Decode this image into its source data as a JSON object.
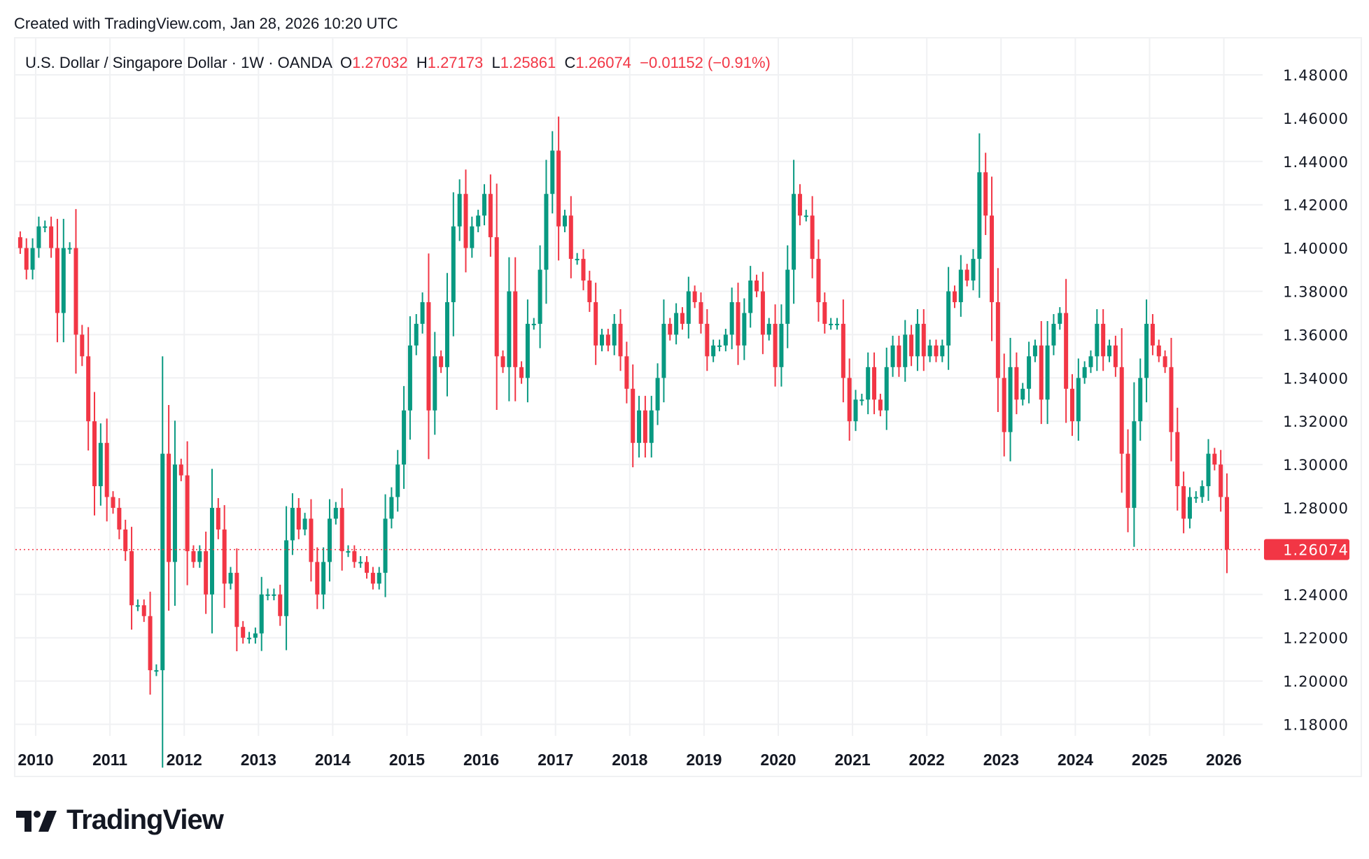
{
  "header": {
    "created": "Created with TradingView.com, Jan 28, 2026 10:20 UTC"
  },
  "legend": {
    "symbol": "U.S. Dollar / Singapore Dollar · 1W · OANDA",
    "o_label": "O",
    "o": "1.27032",
    "h_label": "H",
    "h": "1.27173",
    "l_label": "L",
    "l": "1.25861",
    "c_label": "C",
    "c": "1.26074",
    "change": "−0.01152 (−0.91%)"
  },
  "logo": {
    "text": "TradingView"
  },
  "colors": {
    "up": "#089981",
    "down": "#F23645",
    "grid": "#f0f1f3",
    "last_price": "#F23645"
  },
  "chart_data": {
    "type": "candlestick",
    "interval": "1W (shown here as approximate monthly closes)",
    "start_month": "2009-10",
    "closes": [
      1.4,
      1.39,
      1.4,
      1.41,
      1.41,
      1.4,
      1.37,
      1.4,
      1.4,
      1.36,
      1.35,
      1.32,
      1.29,
      1.31,
      1.285,
      1.28,
      1.27,
      1.26,
      1.235,
      1.235,
      1.23,
      1.205,
      1.205,
      1.305,
      1.255,
      1.3,
      1.295,
      1.26,
      1.255,
      1.26,
      1.24,
      1.28,
      1.27,
      1.245,
      1.25,
      1.225,
      1.22,
      1.22,
      1.222,
      1.24,
      1.24,
      1.24,
      1.23,
      1.265,
      1.28,
      1.27,
      1.275,
      1.255,
      1.24,
      1.255,
      1.275,
      1.28,
      1.26,
      1.26,
      1.255,
      1.255,
      1.25,
      1.245,
      1.25,
      1.275,
      1.285,
      1.3,
      1.325,
      1.355,
      1.365,
      1.375,
      1.325,
      1.35,
      1.345,
      1.375,
      1.41,
      1.425,
      1.4,
      1.41,
      1.415,
      1.425,
      1.405,
      1.35,
      1.345,
      1.38,
      1.345,
      1.34,
      1.365,
      1.365,
      1.39,
      1.425,
      1.445,
      1.41,
      1.415,
      1.395,
      1.395,
      1.385,
      1.375,
      1.355,
      1.36,
      1.355,
      1.365,
      1.35,
      1.335,
      1.31,
      1.325,
      1.31,
      1.325,
      1.34,
      1.365,
      1.36,
      1.37,
      1.365,
      1.38,
      1.375,
      1.365,
      1.35,
      1.355,
      1.355,
      1.36,
      1.375,
      1.355,
      1.37,
      1.385,
      1.38,
      1.36,
      1.365,
      1.345,
      1.365,
      1.39,
      1.425,
      1.415,
      1.415,
      1.395,
      1.375,
      1.365,
      1.365,
      1.365,
      1.34,
      1.32,
      1.33,
      1.33,
      1.345,
      1.33,
      1.325,
      1.345,
      1.355,
      1.345,
      1.36,
      1.35,
      1.365,
      1.35,
      1.355,
      1.35,
      1.355,
      1.38,
      1.375,
      1.39,
      1.385,
      1.395,
      1.435,
      1.415,
      1.375,
      1.34,
      1.315,
      1.345,
      1.33,
      1.335,
      1.35,
      1.355,
      1.33,
      1.355,
      1.365,
      1.37,
      1.335,
      1.32,
      1.34,
      1.345,
      1.35,
      1.365,
      1.35,
      1.355,
      1.345,
      1.305,
      1.28,
      1.32,
      1.34,
      1.365,
      1.355,
      1.35,
      1.345,
      1.315,
      1.29,
      1.275,
      1.285,
      1.285,
      1.29,
      1.305,
      1.3,
      1.285,
      1.26074
    ],
    "last_price": 1.26074,
    "last_price_label": "1.26074",
    "ylim": [
      1.17,
      1.49
    ],
    "y_ticks": [
      "1.48000",
      "1.46000",
      "1.44000",
      "1.42000",
      "1.40000",
      "1.38000",
      "1.36000",
      "1.34000",
      "1.32000",
      "1.30000",
      "1.28000",
      "1.24000",
      "1.22000",
      "1.20000",
      "1.18000"
    ],
    "x_ticks": [
      "2010",
      "2011",
      "2012",
      "2013",
      "2014",
      "2015",
      "2016",
      "2017",
      "2018",
      "2019",
      "2020",
      "2021",
      "2022",
      "2023",
      "2024",
      "2025",
      "2026"
    ],
    "grid": true
  }
}
